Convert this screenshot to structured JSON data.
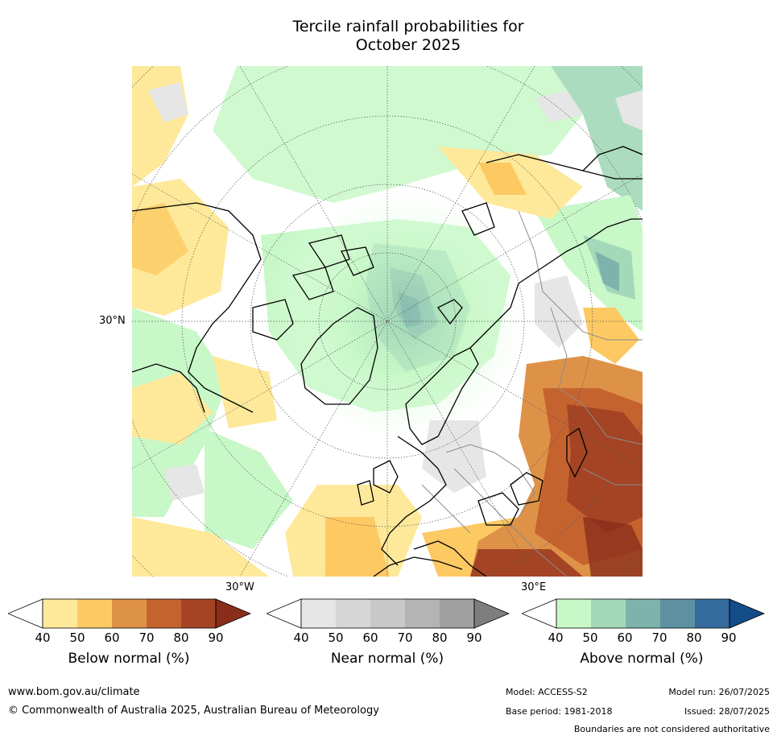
{
  "title": {
    "line1": "Tercile rainfall probabilities for",
    "line2": "October 2025"
  },
  "map": {
    "labels": {
      "lat30": "30°N",
      "lon30w": "30°W",
      "lon30e": "30°E"
    },
    "colors": {
      "ocean_base": "#ffffff",
      "coast": "#000000",
      "borders": "#8c8c8c",
      "graticule": "#555555"
    }
  },
  "colorbars": [
    {
      "label": "Below normal (%)",
      "ticks": [
        "40",
        "50",
        "60",
        "70",
        "80",
        "90"
      ],
      "colors": [
        "#ffffff",
        "#fee99a",
        "#fdc963",
        "#de9248",
        "#c5632f",
        "#a44424",
        "#8a2e1b"
      ]
    },
    {
      "label": "Near normal (%)",
      "ticks": [
        "40",
        "50",
        "60",
        "70",
        "80",
        "90"
      ],
      "colors": [
        "#ffffff",
        "#e6e6e6",
        "#d6d6d6",
        "#c8c8c8",
        "#b4b4b4",
        "#a0a0a0",
        "#7e7e7e"
      ]
    },
    {
      "label": "Above normal (%)",
      "ticks": [
        "40",
        "50",
        "60",
        "70",
        "80",
        "90"
      ],
      "colors": [
        "#ffffff",
        "#c8f8c8",
        "#a3d8b8",
        "#7eb3ad",
        "#5d91a2",
        "#356a9c",
        "#134c89"
      ]
    }
  ],
  "footer": {
    "url": "www.bom.gov.au/climate",
    "copyright": "© Commonwealth of Australia 2025, Australian Bureau of Meteorology",
    "model": "Model: ACCESS-S2",
    "base_period": "Base period: 1981-2018",
    "model_run": "Model run: 26/07/2025",
    "issued": "Issued: 28/07/2025",
    "disclaimer": "Boundaries are not considered authoritative"
  }
}
